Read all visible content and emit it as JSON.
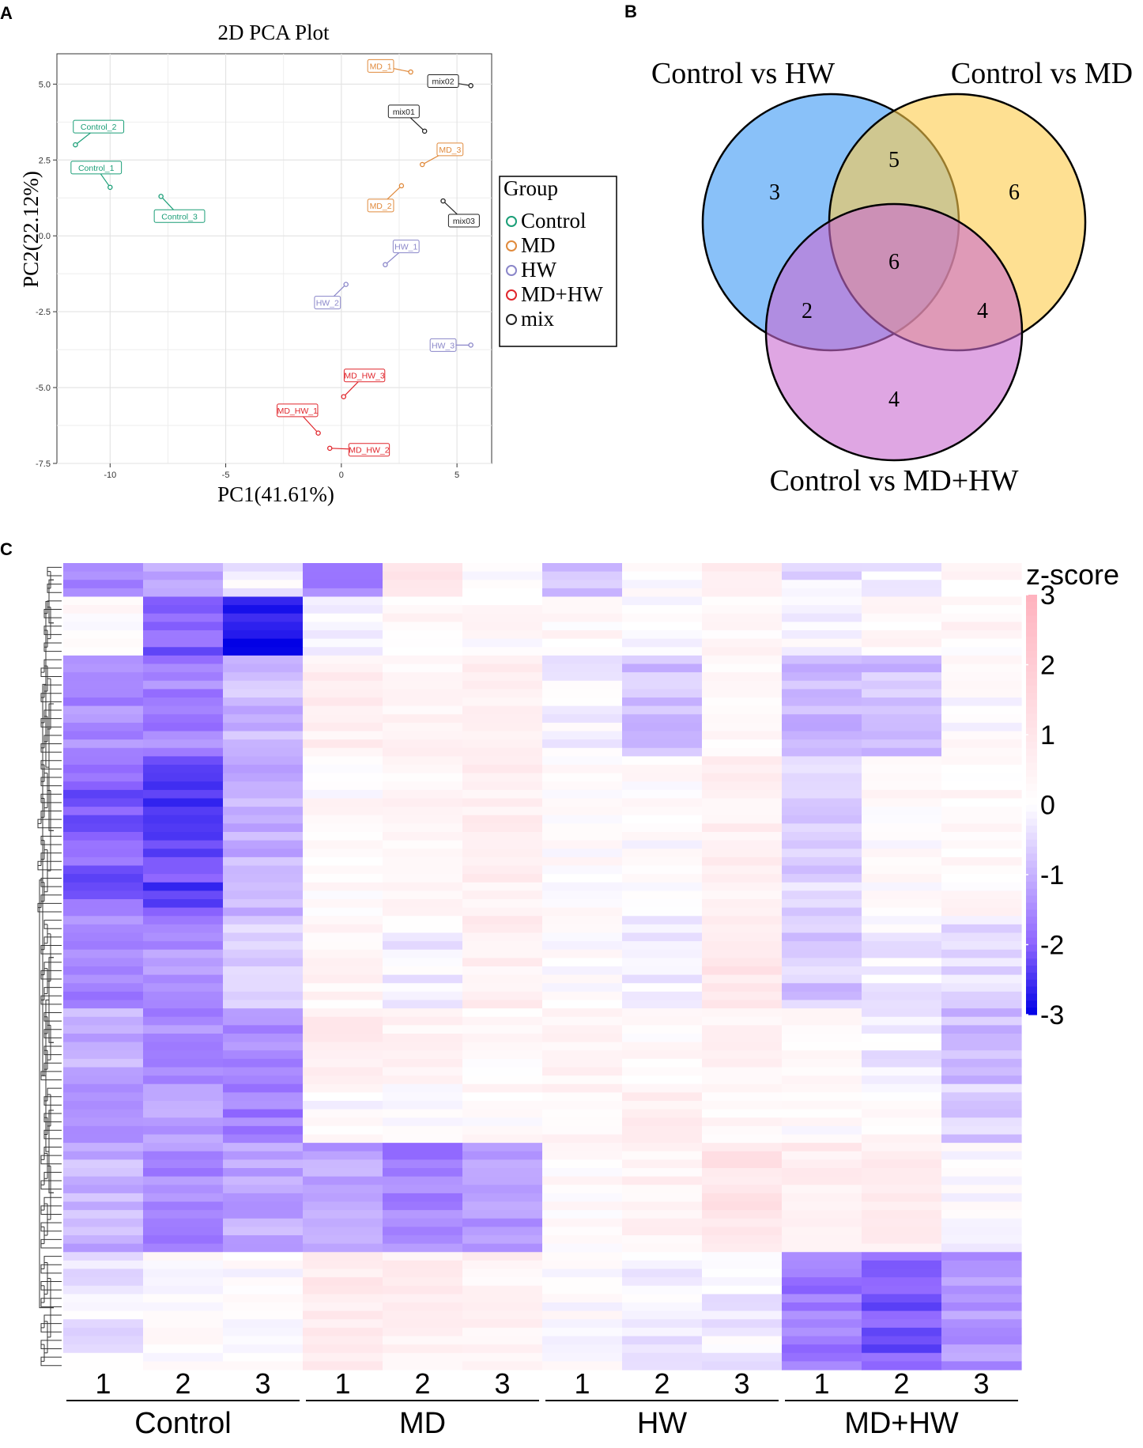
{
  "panels": {
    "a": {
      "letter": "A"
    },
    "b": {
      "letter": "B"
    },
    "c": {
      "letter": "C"
    }
  },
  "chart_data": [
    {
      "type": "scatter",
      "title": "2D PCA Plot",
      "xlabel": "PC1(41.61%)",
      "ylabel": "PC2(22.12%)",
      "xlim": [
        -12.3,
        6.5
      ],
      "ylim": [
        -7.5,
        6.0
      ],
      "xticks": [
        -10,
        -5,
        0,
        5
      ],
      "yticks": [
        5.0,
        2.5,
        0.0,
        -2.5,
        -5.0,
        -7.5
      ],
      "xtick_labels": [
        "-10",
        "-5",
        "0",
        "5"
      ],
      "ytick_labels": [
        "5.0",
        "2.5",
        "0.0",
        "-2.5",
        "-5.0",
        "-7.5"
      ],
      "grid": true,
      "legend_title": "Group",
      "legend_position": "right",
      "groups": [
        {
          "name": "Control",
          "color": "#1a9e77"
        },
        {
          "name": "MD",
          "color": "#e08a3c"
        },
        {
          "name": "HW",
          "color": "#8a86c9"
        },
        {
          "name": "MD+HW",
          "color": "#e0262c"
        },
        {
          "name": "mix",
          "color": "#222222"
        }
      ],
      "points": [
        {
          "label": "Control_2",
          "group": "Control",
          "x": -11.5,
          "y": 3.0,
          "lx": -10.5,
          "ly": 3.6
        },
        {
          "label": "Control_1",
          "group": "Control",
          "x": -10.0,
          "y": 1.6,
          "lx": -10.6,
          "ly": 2.25
        },
        {
          "label": "Control_3",
          "group": "Control",
          "x": -7.8,
          "y": 1.3,
          "lx": -7.0,
          "ly": 0.65
        },
        {
          "label": "MD_1",
          "group": "MD",
          "x": 3.0,
          "y": 5.4,
          "lx": 1.7,
          "ly": 5.6
        },
        {
          "label": "MD_3",
          "group": "MD",
          "x": 3.5,
          "y": 2.35,
          "lx": 4.7,
          "ly": 2.85
        },
        {
          "label": "MD_2",
          "group": "MD",
          "x": 2.6,
          "y": 1.65,
          "lx": 1.7,
          "ly": 1.0
        },
        {
          "label": "mix02",
          "group": "mix",
          "x": 5.6,
          "y": 4.95,
          "lx": 4.4,
          "ly": 5.1
        },
        {
          "label": "mix01",
          "group": "mix",
          "x": 3.6,
          "y": 3.45,
          "lx": 2.7,
          "ly": 4.1
        },
        {
          "label": "mix03",
          "group": "mix",
          "x": 4.4,
          "y": 1.15,
          "lx": 5.3,
          "ly": 0.5
        },
        {
          "label": "HW_1",
          "group": "HW",
          "x": 1.9,
          "y": -0.95,
          "lx": 2.8,
          "ly": -0.35
        },
        {
          "label": "HW_2",
          "group": "HW",
          "x": 0.2,
          "y": -1.6,
          "lx": -0.6,
          "ly": -2.2
        },
        {
          "label": "HW_3",
          "group": "HW",
          "x": 5.6,
          "y": -3.6,
          "lx": 4.4,
          "ly": -3.6
        },
        {
          "label": "MD_HW_3",
          "group": "MD+HW",
          "x": 0.1,
          "y": -5.3,
          "lx": 1.0,
          "ly": -4.6
        },
        {
          "label": "MD_HW_1",
          "group": "MD+HW",
          "x": -1.0,
          "y": -6.5,
          "lx": -1.9,
          "ly": -5.75
        },
        {
          "label": "MD_HW_2",
          "group": "MD+HW",
          "x": -0.5,
          "y": -7.0,
          "lx": 1.2,
          "ly": -7.05
        }
      ]
    },
    {
      "type": "venn",
      "sets": [
        {
          "name": "Control vs HW",
          "color": "#3a98f5"
        },
        {
          "name": "Control vs MD",
          "color": "#fecb49"
        },
        {
          "name": "Control vs MD+HW",
          "color": "#c96ad0"
        }
      ],
      "regions": [
        {
          "sets": [
            "Control vs HW"
          ],
          "value": 3
        },
        {
          "sets": [
            "Control vs MD"
          ],
          "value": 6
        },
        {
          "sets": [
            "Control vs MD+HW"
          ],
          "value": 4
        },
        {
          "sets": [
            "Control vs HW",
            "Control vs MD"
          ],
          "value": 5
        },
        {
          "sets": [
            "Control vs HW",
            "Control vs MD+HW"
          ],
          "value": 2
        },
        {
          "sets": [
            "Control vs MD",
            "Control vs MD+HW"
          ],
          "value": 4
        },
        {
          "sets": [
            "Control vs HW",
            "Control vs MD",
            "Control vs MD+HW"
          ],
          "value": 6
        }
      ]
    },
    {
      "type": "heatmap",
      "legend_title": "z-score",
      "scale_ticks": [
        "3",
        "2",
        "1",
        "0",
        "-1",
        "-2",
        "-3"
      ],
      "scale_range": [
        -3,
        3
      ],
      "groups": [
        "Control",
        "MD",
        "HW",
        "MD+HW"
      ],
      "column_labels": [
        "1",
        "2",
        "3",
        "1",
        "2",
        "3",
        "1",
        "2",
        "3",
        "1",
        "2",
        "3"
      ],
      "row_count": 96,
      "row_blocks": [
        {
          "rows": 4,
          "values": [
            -1.5,
            -1.0,
            -0.2,
            -1.6,
            1.0,
            0.1,
            -0.7,
            0.0,
            0.8,
            -0.4,
            -0.3,
            0.2
          ]
        },
        {
          "rows": 7,
          "values": [
            0.1,
            -2.0,
            -2.8,
            -0.3,
            0.3,
            0.2,
            0.3,
            0.1,
            0.4,
            0.0,
            0.3,
            0.3
          ]
        },
        {
          "rows": 12,
          "values": [
            -1.5,
            -1.6,
            -0.9,
            0.6,
            0.4,
            0.6,
            -0.1,
            -0.8,
            0.3,
            -1.0,
            -0.8,
            0.1
          ]
        },
        {
          "rows": 19,
          "values": [
            -2.0,
            -2.3,
            -1.0,
            0.2,
            0.4,
            0.6,
            0.2,
            0.1,
            0.6,
            -0.6,
            0.2,
            0.3
          ]
        },
        {
          "rows": 11,
          "values": [
            -1.6,
            -1.4,
            -0.6,
            0.4,
            -0.2,
            0.6,
            0.1,
            -0.2,
            0.9,
            -0.7,
            -0.2,
            -0.4
          ]
        },
        {
          "rows": 9,
          "values": [
            -1.1,
            -1.5,
            -1.5,
            0.8,
            0.5,
            0.3,
            0.5,
            0.2,
            0.4,
            0.1,
            -0.2,
            -0.9
          ]
        },
        {
          "rows": 7,
          "values": [
            -1.5,
            -1.3,
            -1.7,
            0.1,
            -0.1,
            0.2,
            0.4,
            0.6,
            0.3,
            0.2,
            0.2,
            -0.6
          ]
        },
        {
          "rows": 13,
          "values": [
            -1.0,
            -1.5,
            -1.1,
            -1.2,
            -1.6,
            -1.3,
            0.2,
            0.5,
            1.0,
            0.7,
            0.6,
            0.0
          ]
        },
        {
          "rows": 14,
          "values": [
            -0.3,
            0.1,
            0.0,
            0.8,
            0.6,
            0.5,
            0.1,
            -0.2,
            -0.2,
            -1.7,
            -2.1,
            -1.4
          ]
        }
      ]
    }
  ]
}
